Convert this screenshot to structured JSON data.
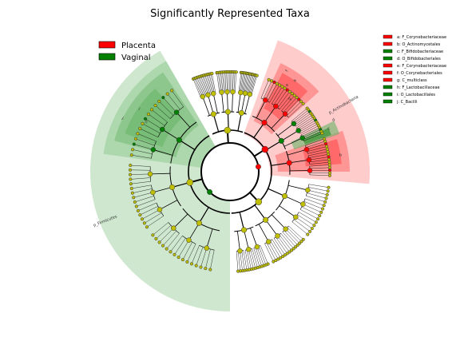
{
  "chart_data": {
    "type": "cladogram",
    "title": "Significantly Represented Taxa",
    "colors": {
      "Placenta": "#ff0000",
      "Vaginal": "#008000",
      "neutral_node": "#bfbf00",
      "placenta_fill": "#ff9999",
      "vaginal_fill": "#66b366"
    },
    "groups": [
      {
        "name": "Placenta",
        "color": "#ff0000"
      },
      {
        "name": "Vaginal",
        "color": "#008000"
      }
    ],
    "taxa": [
      {
        "key": "a",
        "name": "F_Corynebacteriaceae",
        "group": "Placenta",
        "label": "a: F_Corynebacteriaceae"
      },
      {
        "key": "b",
        "name": "O_Actinomycetales",
        "group": "Placenta",
        "label": "b: O_Actinomycetales"
      },
      {
        "key": "c",
        "name": "F_Bifidobacteriaceae",
        "group": "Vaginal",
        "label": "c: F_Bifidobacteriaceae"
      },
      {
        "key": "d",
        "name": "O_Bifidobacteriales",
        "group": "Vaginal",
        "label": "d: O_Bifidobacteriales"
      },
      {
        "key": "e",
        "name": "F_Corynebacteriaceae",
        "group": "Placenta",
        "label": "e: F_Corynebacteriaceae"
      },
      {
        "key": "f",
        "name": "O_Corynebacteriales",
        "group": "Placenta",
        "label": "f: O_Corynebacteriales"
      },
      {
        "key": "g",
        "name": "C_multiclass",
        "group": "Placenta",
        "label": "g: C_multiclass"
      },
      {
        "key": "h",
        "name": "F_Lactobacillaceae",
        "group": "Vaginal",
        "label": "h: F_Lactobacillaceae"
      },
      {
        "key": "i",
        "name": "O_Lactobacillales",
        "group": "Vaginal",
        "label": "i: O_Lactobacillales"
      },
      {
        "key": "j",
        "name": "C_Bacilli",
        "group": "Vaginal",
        "label": "j: C_Bacilli"
      }
    ],
    "clade_labels": [
      "p_Actinobacteria",
      "p_Firmicutes",
      "a",
      "b",
      "e",
      "f",
      "g",
      "c",
      "d",
      "h",
      "i",
      "j"
    ],
    "legend_placement": "top-left",
    "taxa_legend_placement": "top-right"
  }
}
